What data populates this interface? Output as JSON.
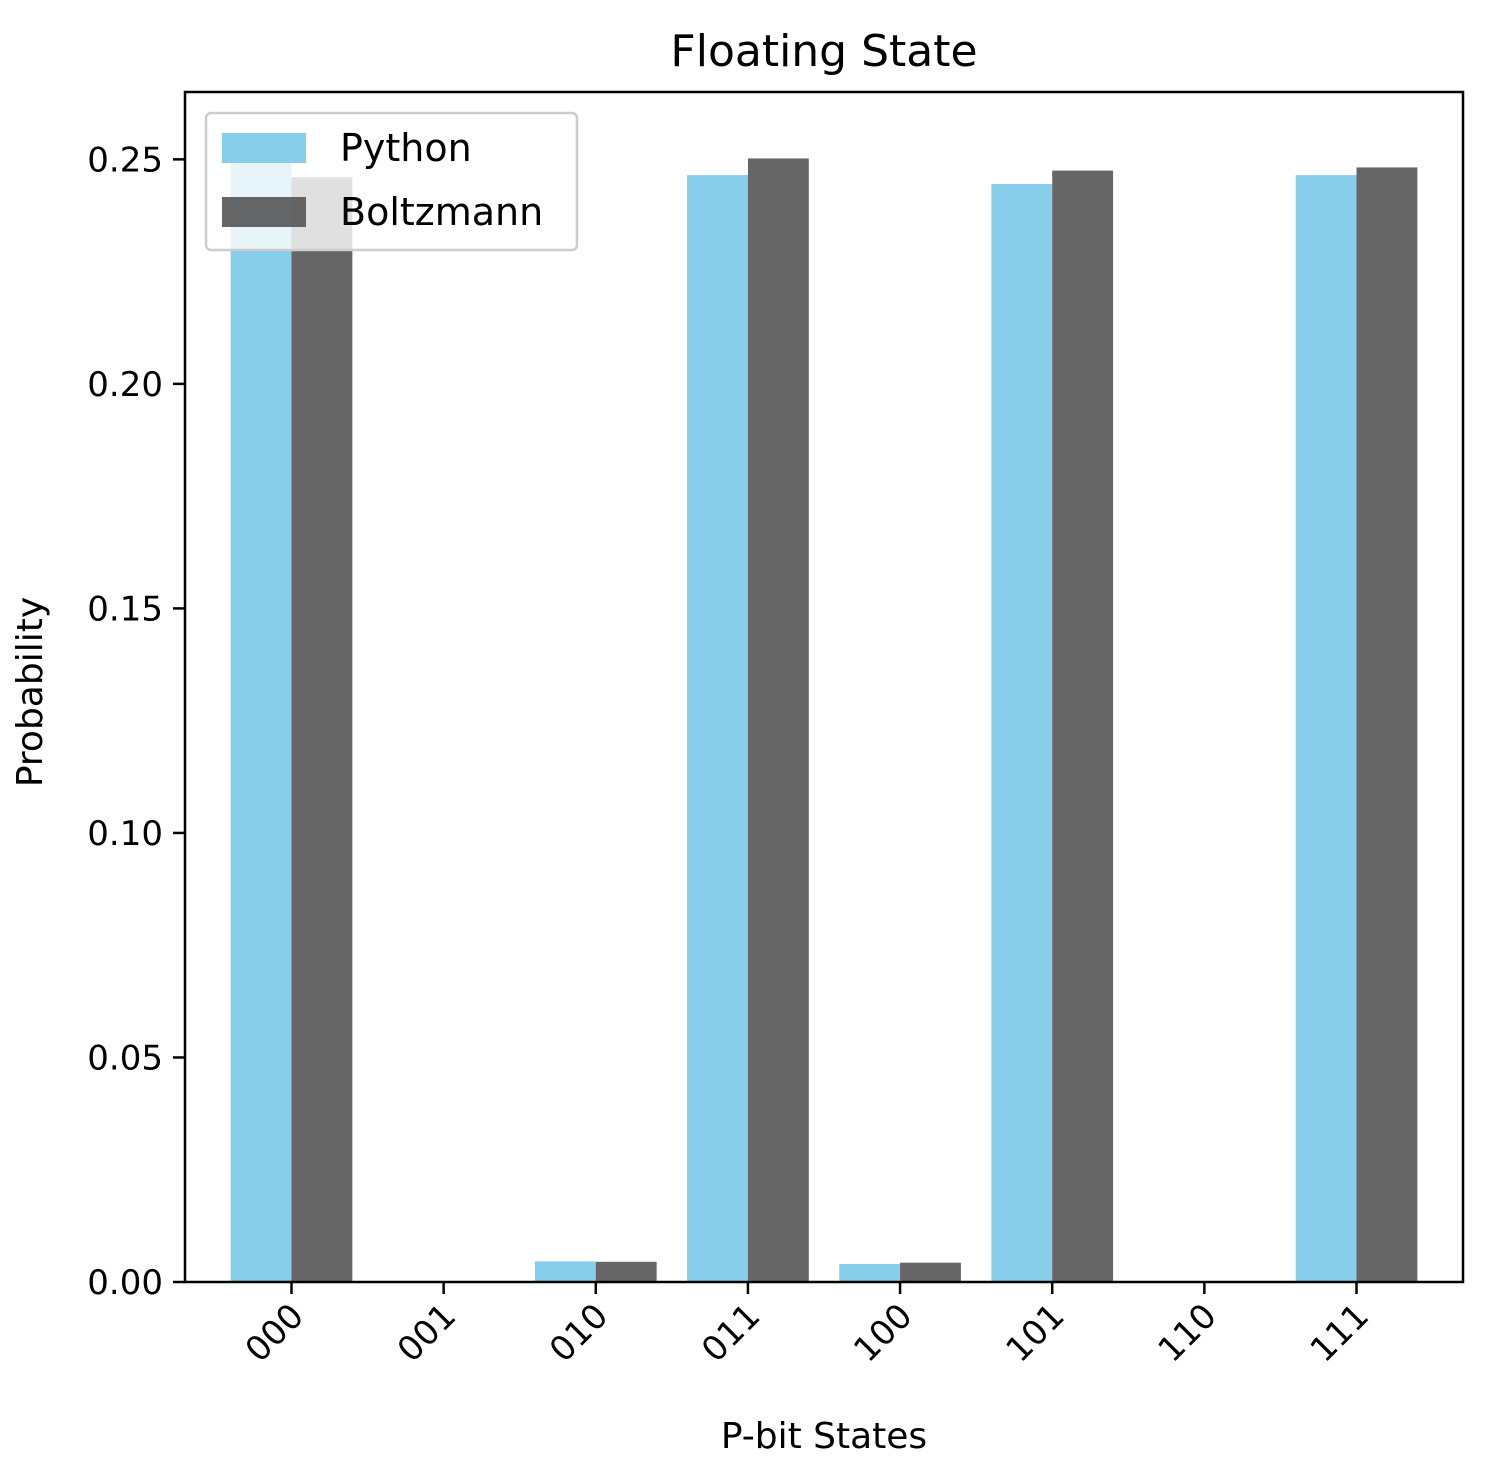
{
  "chart_data": {
    "type": "bar",
    "title": "Floating State",
    "xlabel": "P-bit States",
    "ylabel": "Probability",
    "categories": [
      "000",
      "001",
      "010",
      "011",
      "100",
      "101",
      "110",
      "111"
    ],
    "series": [
      {
        "name": "Python",
        "values": [
          0.251,
          0.0,
          0.0046,
          0.2465,
          0.004,
          0.2445,
          0.0,
          0.2465
        ]
      },
      {
        "name": "Boltzmann",
        "values": [
          0.246,
          0.0,
          0.0045,
          0.2502,
          0.0043,
          0.2475,
          0.0,
          0.2482
        ]
      }
    ],
    "ylim": [
      0,
      0.265
    ],
    "yticks": [
      "0.00",
      "0.05",
      "0.10",
      "0.15",
      "0.20",
      "0.25"
    ],
    "colors": {
      "Python": "#87CEEB",
      "Boltzmann": "#555555"
    },
    "series_opacity": 0.9,
    "grid": false,
    "legend_position": "top-left"
  }
}
